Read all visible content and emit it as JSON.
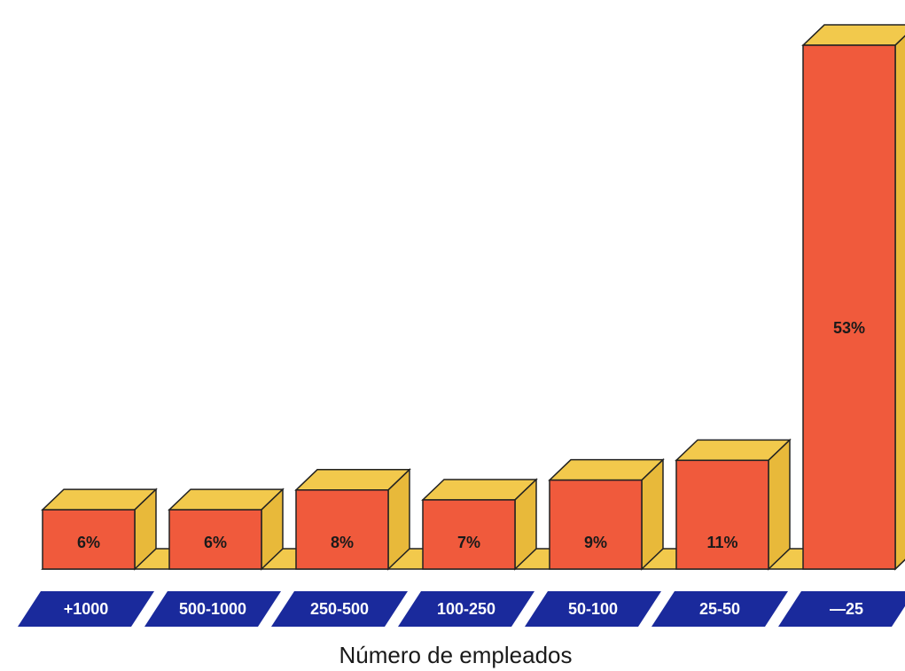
{
  "chart_data": {
    "type": "bar",
    "categories": [
      "+1000",
      "500-1000",
      "250-500",
      "100-250",
      "50-100",
      "25-50",
      "—25"
    ],
    "values": [
      6,
      6,
      8,
      7,
      9,
      11,
      53
    ],
    "value_labels": [
      "6%",
      "6%",
      "8%",
      "7%",
      "9%",
      "11%",
      "53%"
    ],
    "xlabel": "Número de empleados",
    "ylabel": "",
    "unit": "%",
    "grid": false,
    "legend": "none",
    "style": "3d"
  },
  "colors": {
    "bar_front": "#f05a3c",
    "bar_top": "#f2c94c",
    "bar_side": "#e8b93a",
    "base": "#f2c94c",
    "label_band": "#1a2a9c",
    "outline": "#222222"
  }
}
